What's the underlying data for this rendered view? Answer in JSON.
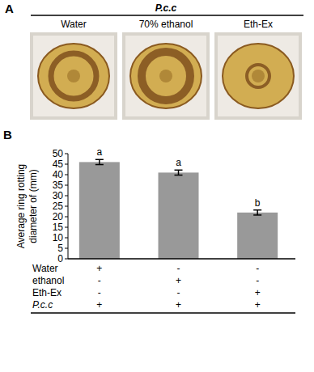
{
  "panel_a": {
    "label": "A",
    "pathogen": "P.c.c",
    "treatments": [
      "Water",
      "70% ethanol",
      "Eth-Ex"
    ]
  },
  "chart_data": {
    "type": "bar",
    "panel_label": "B",
    "ylabel": [
      "Average ring rotting",
      "diameter of (mm)"
    ],
    "categories": [
      null,
      null,
      null
    ],
    "values": [
      46,
      41,
      22
    ],
    "errors": [
      1.2,
      1.2,
      1.2
    ],
    "annotations": [
      "a",
      "a",
      "b"
    ],
    "color": "#999999",
    "ylim": [
      0,
      50
    ],
    "yticks": [
      0,
      5,
      10,
      15,
      20,
      25,
      30,
      35,
      40,
      45,
      50
    ],
    "grid": false,
    "table": {
      "rows": [
        {
          "label": "Water",
          "cells": [
            "+",
            "-",
            "-"
          ]
        },
        {
          "label": "ethanol",
          "cells": [
            "-",
            "+",
            "-"
          ]
        },
        {
          "label": "Eth-Ex",
          "cells": [
            "-",
            "-",
            "+"
          ]
        },
        {
          "label": "P.c.c",
          "cells": [
            "+",
            "+",
            "+"
          ]
        }
      ]
    }
  }
}
